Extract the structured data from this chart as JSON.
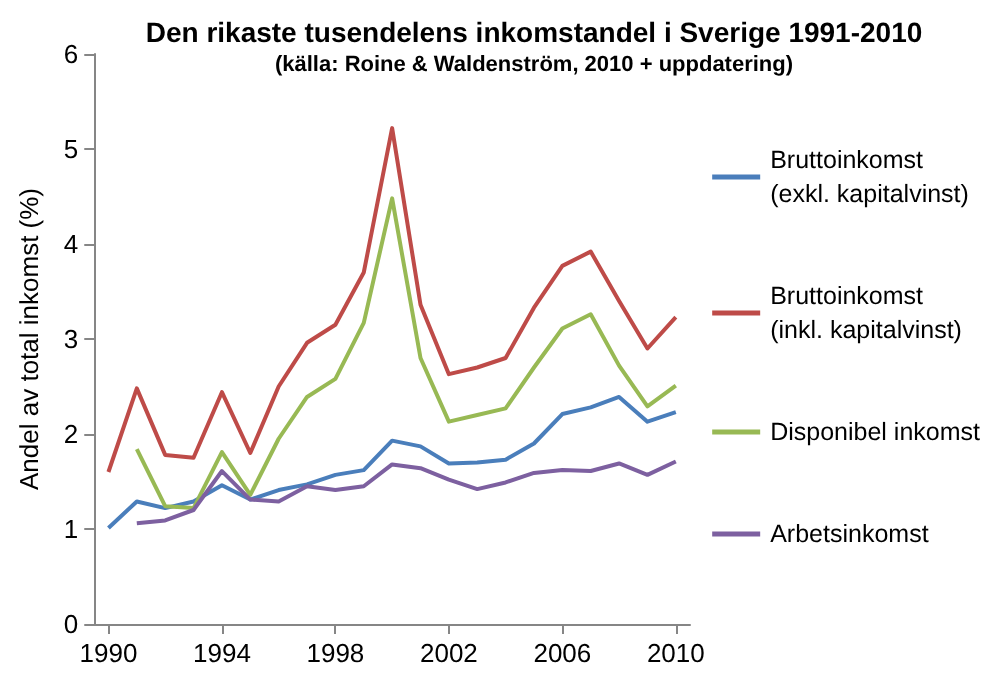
{
  "chart_data": {
    "type": "line",
    "title": "Den rikaste tusendelens inkomstandel i Sverige 1991-2010",
    "subtitle": "(källa: Roine & Waldenström, 2010 + uppdatering)",
    "ylabel": "Andel av total inkomst (%)",
    "x": [
      1990,
      1991,
      1992,
      1993,
      1994,
      1995,
      1996,
      1997,
      1998,
      1999,
      2000,
      2001,
      2002,
      2003,
      2004,
      2005,
      2006,
      2007,
      2008,
      2009,
      2010
    ],
    "series": [
      {
        "name": "Bruttoinkomst\n(exkl. kapitalvinst)",
        "color": "#4a7ebb",
        "values": [
          1.01,
          1.29,
          1.22,
          1.29,
          1.46,
          1.31,
          1.41,
          1.47,
          1.57,
          1.62,
          1.93,
          1.87,
          1.69,
          1.7,
          1.73,
          1.9,
          2.21,
          2.28,
          2.39,
          2.13,
          2.23
        ]
      },
      {
        "name": "Bruttoinkomst\n(inkl. kapitalvinst)",
        "color": "#be4b48",
        "values": [
          1.6,
          2.48,
          1.78,
          1.75,
          2.44,
          1.8,
          2.5,
          2.96,
          3.15,
          3.7,
          5.22,
          3.36,
          2.63,
          2.7,
          2.8,
          3.33,
          3.77,
          3.92,
          3.4,
          2.9,
          3.23
        ]
      },
      {
        "name": "Disponibel inkomst",
        "color": "#98b954",
        "values": [
          null,
          1.84,
          1.24,
          1.22,
          1.81,
          1.36,
          1.95,
          2.39,
          2.58,
          3.17,
          4.48,
          2.8,
          2.13,
          2.2,
          2.27,
          2.7,
          3.11,
          3.26,
          2.72,
          2.29,
          2.51
        ]
      },
      {
        "name": "Arbetsinkomst",
        "color": "#7d60a0",
        "values": [
          null,
          1.06,
          1.09,
          1.2,
          1.61,
          1.31,
          1.29,
          1.45,
          1.41,
          1.45,
          1.68,
          1.64,
          1.52,
          1.42,
          1.49,
          1.59,
          1.62,
          1.61,
          1.69,
          1.57,
          1.71
        ]
      }
    ],
    "xlim": [
      1989.5,
      2010.5
    ],
    "xticks": [
      1990,
      1994,
      1998,
      2002,
      2006,
      2010
    ],
    "ylim": [
      0,
      6
    ],
    "yticks": [
      0,
      1,
      2,
      3,
      4,
      5,
      6
    ],
    "grid": false,
    "legend": "right",
    "marker": "none",
    "line_style": "solid"
  }
}
